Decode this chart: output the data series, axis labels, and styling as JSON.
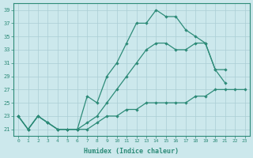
{
  "xlabel": "Humidex (Indice chaleur)",
  "line_color": "#2d8b78",
  "bg_color": "#cce8ec",
  "grid_color": "#aacdd4",
  "ylim": [
    20,
    40
  ],
  "yticks": [
    21,
    23,
    25,
    27,
    29,
    31,
    33,
    35,
    37,
    39
  ],
  "xticks": [
    0,
    1,
    2,
    3,
    4,
    5,
    6,
    7,
    8,
    9,
    10,
    11,
    12,
    13,
    14,
    15,
    16,
    17,
    18,
    19,
    20,
    21,
    22,
    23
  ],
  "x_values": [
    0,
    1,
    2,
    3,
    4,
    5,
    6,
    7,
    8,
    9,
    10,
    11,
    12,
    13,
    14,
    15,
    16,
    17,
    18,
    19,
    20,
    21,
    22,
    23
  ],
  "y_max": [
    23,
    21,
    23,
    22,
    21,
    21,
    21,
    26,
    25,
    29,
    31,
    34,
    37,
    37,
    39,
    38,
    38,
    36,
    35,
    34,
    30,
    30,
    null,
    null
  ],
  "y_mid": [
    23,
    21,
    23,
    22,
    21,
    21,
    21,
    22,
    23,
    25,
    27,
    29,
    31,
    33,
    34,
    34,
    33,
    33,
    34,
    34,
    30,
    28,
    null,
    null
  ],
  "y_min": [
    23,
    21,
    23,
    22,
    21,
    21,
    21,
    21,
    22,
    23,
    23,
    24,
    24,
    25,
    25,
    25,
    25,
    25,
    26,
    26,
    27,
    27,
    27,
    27
  ]
}
